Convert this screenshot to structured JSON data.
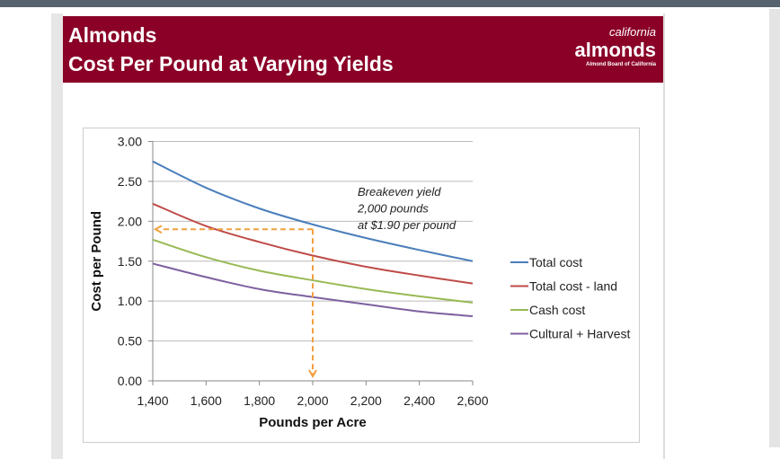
{
  "header": {
    "title_line1": "Almonds",
    "title_line2": "Cost Per Pound at Varying Yields",
    "logo_text": [
      "california",
      "almonds",
      "Almond Board of California"
    ],
    "background_color": "#8a0027"
  },
  "chart_data": {
    "type": "line",
    "title": "Almonds Cost Per Pound at Varying Yields",
    "xlabel": "Pounds per Acre",
    "ylabel": "Cost per  Pound",
    "x": [
      1400,
      1600,
      1800,
      2000,
      2200,
      2400,
      2600
    ],
    "x_tick_labels": [
      "1,400",
      "1,600",
      "1,800",
      "2,000",
      "2,200",
      "2,400",
      "2,600"
    ],
    "y_tick_labels": [
      "0.00",
      "0.50",
      "1.00",
      "1.50",
      "2.00",
      "2.50",
      "3.00"
    ],
    "ylim": [
      0,
      3
    ],
    "xlim": [
      1400,
      2600
    ],
    "grid": "horizontal",
    "legend_position": "right",
    "series": [
      {
        "name": "Total cost",
        "color": "#4a7ebb",
        "values": [
          2.75,
          2.42,
          2.16,
          1.96,
          1.79,
          1.64,
          1.5
        ]
      },
      {
        "name": "Total cost - land",
        "color": "#be4b48",
        "values": [
          2.22,
          1.94,
          1.74,
          1.57,
          1.43,
          1.32,
          1.22
        ]
      },
      {
        "name": "Cash cost",
        "color": "#98b954",
        "values": [
          1.77,
          1.55,
          1.38,
          1.26,
          1.15,
          1.06,
          0.98
        ]
      },
      {
        "name": "Cultural + Harvest",
        "color": "#7d60a0",
        "values": [
          1.47,
          1.3,
          1.15,
          1.05,
          0.96,
          0.87,
          0.81
        ]
      }
    ],
    "annotation": {
      "lines": [
        "Breakeven yield",
        "2,000 pounds",
        "at  $1.90 per pound"
      ],
      "x": 2000,
      "y": 1.9,
      "color": "#f0a040"
    }
  }
}
